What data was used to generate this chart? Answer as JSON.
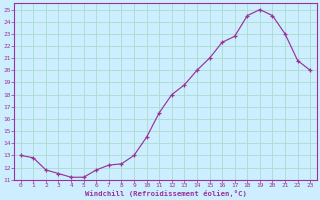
{
  "x": [
    0,
    1,
    2,
    3,
    4,
    5,
    6,
    7,
    8,
    9,
    10,
    11,
    12,
    13,
    14,
    15,
    16,
    17,
    18,
    19,
    20,
    21,
    22,
    23
  ],
  "y": [
    13.0,
    12.8,
    11.8,
    11.5,
    11.2,
    11.2,
    11.8,
    12.2,
    12.3,
    13.0,
    14.5,
    16.5,
    18.0,
    18.8,
    20.0,
    21.0,
    22.3,
    22.8,
    24.5,
    25.0,
    24.5,
    23.0,
    20.8,
    20.0
  ],
  "line_color": "#993399",
  "marker": "+",
  "bg_color": "#cceeff",
  "grid_color": "#aaddcc",
  "xlabel": "Windchill (Refroidissement éolien,°C)",
  "ylabel_ticks": [
    11,
    12,
    13,
    14,
    15,
    16,
    17,
    18,
    19,
    20,
    21,
    22,
    23,
    24,
    25
  ],
  "xlim": [
    -0.5,
    23.5
  ],
  "ylim": [
    11,
    25.5
  ],
  "font_color": "#993399",
  "font_family": "monospace",
  "tick_fontsize": 4.5,
  "xlabel_fontsize": 5.2
}
